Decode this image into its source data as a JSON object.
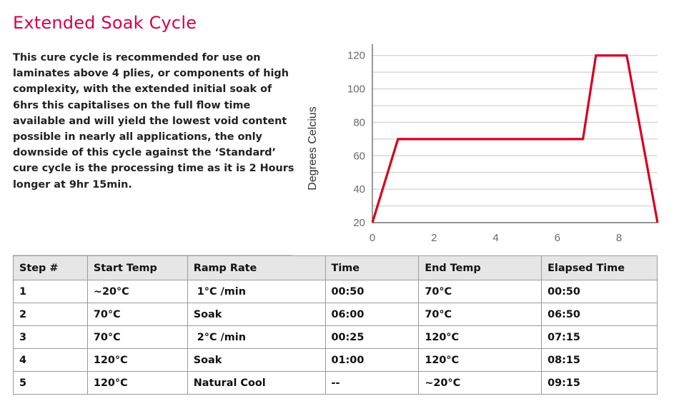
{
  "title": "Extended Soak Cycle",
  "description": "This cure cycle is recommended for use on laminates above 4 plies, or components of high complexity, with the extended initial soak of 6hrs this capitalises on the full flow time available and will yield the lowest void content possible in nearly all applications, the only downside of this cycle against the ‘Standard’ cure cycle is the processing time as it is 2 Hours longer at 9hr 15min.",
  "chart_data": {
    "type": "line",
    "ylabel": "Degrees Celcius",
    "xlabel": "",
    "xlim": [
      0,
      9.25
    ],
    "ylim": [
      20,
      125
    ],
    "x_ticks": [
      "0",
      "2",
      "4",
      "6",
      "8"
    ],
    "y_ticks": [
      "20",
      "40",
      "60",
      "80",
      "100",
      "120"
    ],
    "grid": "horizontal",
    "colors": {
      "line": "#d6001c",
      "grid": "#c8c8c8",
      "axis": "#555555"
    },
    "series": [
      {
        "x": [
          0,
          0.83,
          6.83,
          7.25,
          8.25,
          9.25
        ],
        "y": [
          20,
          70,
          70,
          120,
          120,
          20
        ]
      }
    ]
  },
  "table": {
    "headers": [
      "Step #",
      "Start Temp",
      "Ramp Rate",
      "Time",
      "End Temp",
      "Elapsed Time"
    ],
    "rows": [
      [
        "1",
        "~20°C",
        " 1°C /min",
        "00:50",
        "70°C",
        "00:50"
      ],
      [
        "2",
        "70°C",
        "Soak",
        "06:00",
        "70°C",
        "06:50"
      ],
      [
        "3",
        "70°C",
        " 2°C /min",
        "00:25",
        "120°C",
        "07:15"
      ],
      [
        "4",
        "120°C",
        "Soak",
        "01:00",
        "120°C",
        "08:15"
      ],
      [
        "5",
        "120°C",
        "Natural Cool",
        "--",
        "~20°C",
        "09:15"
      ]
    ]
  }
}
